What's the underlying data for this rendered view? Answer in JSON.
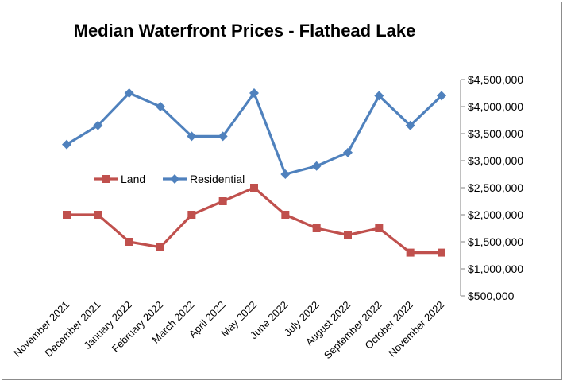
{
  "chart_data": {
    "type": "line",
    "title": "Median Waterfront Prices - Flathead Lake",
    "xlabel": "",
    "ylabel": "",
    "categories": [
      "November 2021",
      "December 2021",
      "January 2022",
      "February 2022",
      "March 2022",
      "April 2022",
      "May 2022",
      "June 2022",
      "July 2022",
      "August 2022",
      "September 2022",
      "October 2022",
      "November 2022"
    ],
    "series": [
      {
        "name": "Land",
        "color": "#c0504d",
        "marker": "square",
        "values": [
          2000000,
          2000000,
          1500000,
          1400000,
          2000000,
          2250000,
          2500000,
          2000000,
          1750000,
          1625000,
          1750000,
          1300000,
          1300000
        ]
      },
      {
        "name": "Residential",
        "color": "#4f81bd",
        "marker": "diamond",
        "values": [
          3300000,
          3650000,
          4250000,
          4000000,
          3450000,
          3450000,
          4250000,
          2750000,
          2900000,
          3150000,
          4200000,
          3650000,
          4200000
        ]
      }
    ],
    "ylim": [
      500000,
      4500000
    ],
    "yticks": [
      500000,
      1000000,
      1500000,
      2000000,
      2500000,
      3000000,
      3500000,
      4000000,
      4500000
    ],
    "ytick_labels": [
      "$500,000",
      "$1,000,000",
      "$1,500,000",
      "$2,000,000",
      "$2,500,000",
      "$3,000,000",
      "$3,500,000",
      "$4,000,000",
      "$4,500,000"
    ],
    "y_axis_side": "right",
    "grid": false,
    "legend_position": "middle-left"
  }
}
